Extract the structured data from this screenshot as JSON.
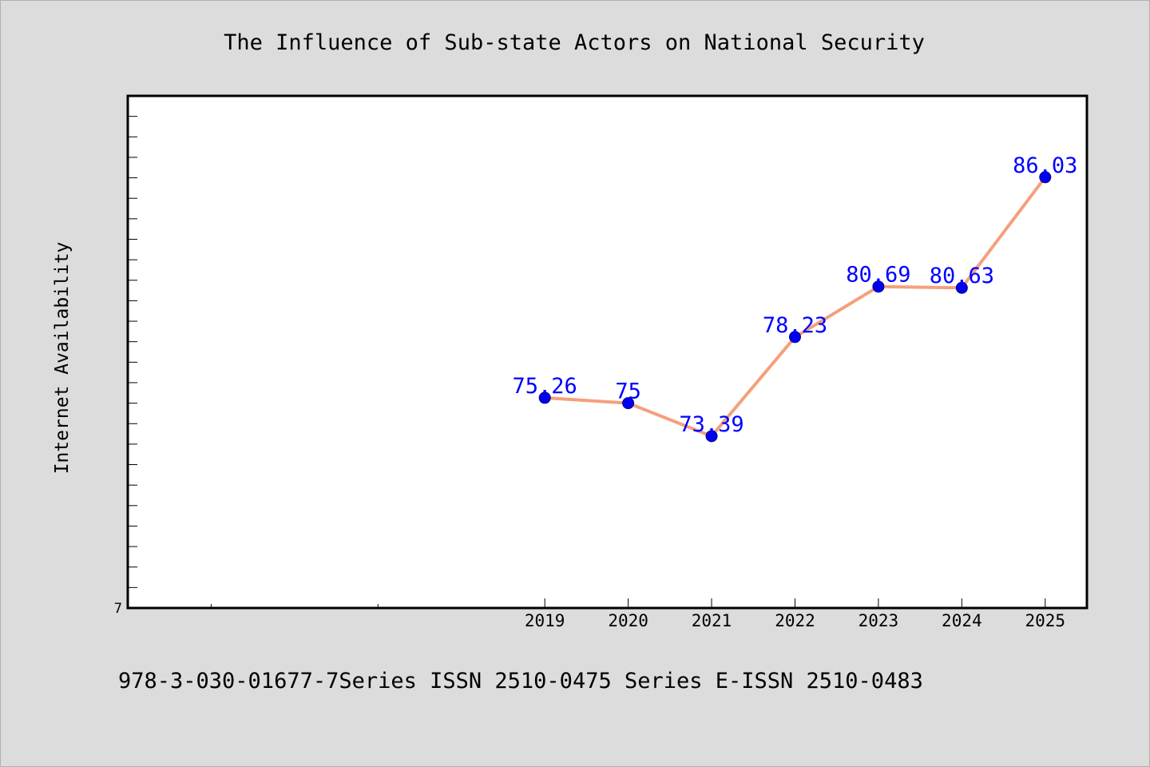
{
  "chart_data": {
    "type": "line",
    "title": "The Influence of Sub-state Actors on National Security",
    "ylabel": "Internet Availability",
    "xlabel": "",
    "footer": "978-3-030-01677-7Series ISSN 2510-0475 Series E-ISSN 2510-0483",
    "y_tick_label": "7",
    "categories": [
      "2019",
      "2020",
      "2021",
      "2022",
      "2023",
      "2024",
      "2025"
    ],
    "series": [
      {
        "values": [
          75.26,
          75,
          73.39,
          78.23,
          80.69,
          80.63,
          86.03
        ],
        "labels": [
          "75.26",
          "75",
          "73.39",
          "78.23",
          "80.69",
          "80.63",
          "86.03"
        ]
      }
    ],
    "ylim": [
      65,
      90
    ],
    "xlim": [
      2014,
      2025.5
    ],
    "grid": false,
    "legend": "none",
    "colors": {
      "line": "#f4a07c",
      "marker": "#0000ee",
      "data_label": "#0000ff",
      "background": "#dcdcdc",
      "plot_background": "#ffffff"
    }
  }
}
